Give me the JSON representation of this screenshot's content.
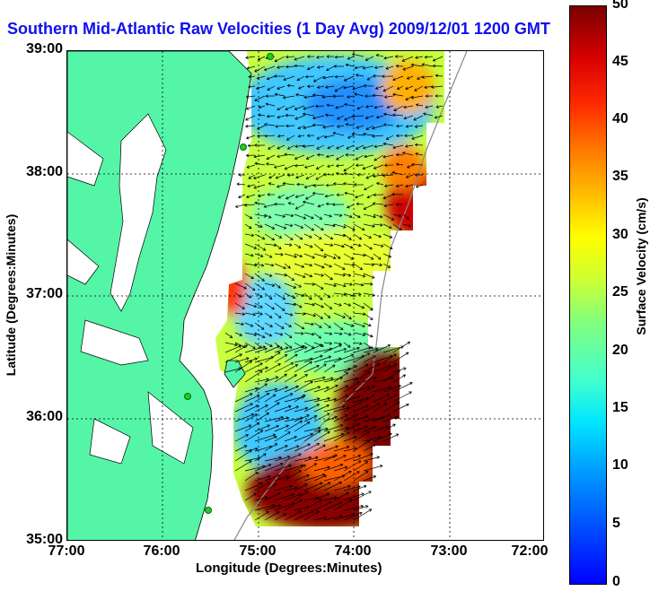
{
  "header": {
    "title": "Southern Mid-Atlantic Raw Velocities (1 Day Avg) 2009/12/01 1200 GMT"
  },
  "axes": {
    "xlabel": "Longitude (Degrees:Minutes)",
    "ylabel": "Latitude (Degrees:Minutes)",
    "x_ticks": [
      "77:00",
      "76:00",
      "75:00",
      "74:00",
      "73:00",
      "72:00"
    ],
    "y_ticks": [
      "39:00",
      "38:00",
      "37:00",
      "36:00",
      "35:00"
    ],
    "xlim": [
      -77,
      -72
    ],
    "ylim": [
      35,
      39
    ],
    "grid": "dotted"
  },
  "colorbar": {
    "label": "Surface Velocity (cm/s)",
    "ticks": [
      "50",
      "45",
      "40",
      "35",
      "30",
      "25",
      "20",
      "15",
      "10",
      "5",
      "0"
    ],
    "range": [
      0,
      50
    ]
  },
  "colors": {
    "land": "#55f5a8",
    "title": "#1010ee",
    "coastline": "#000000",
    "station": "#22cc22"
  }
}
